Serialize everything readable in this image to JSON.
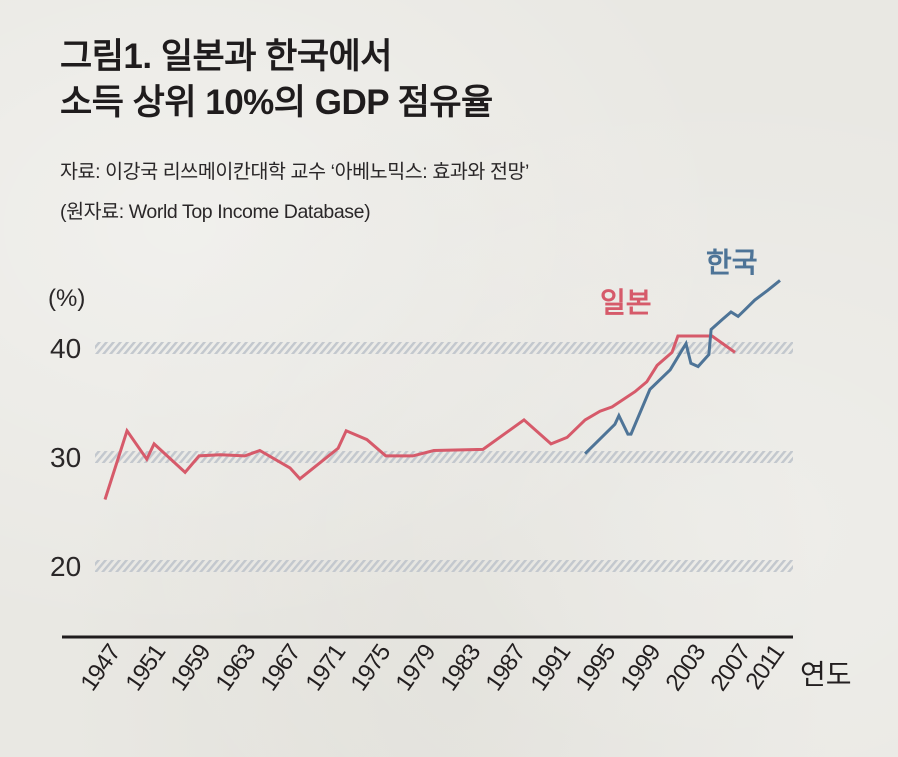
{
  "header": {
    "title_line1": "그림1. 일본과 한국에서",
    "title_line2": "소득 상위 10%의 GDP 점유율",
    "source_line1": "자료: 이강국 리쓰메이칸대학 교수 ‘아베노믹스: 효과와 전망’",
    "source_line2": "(원자료: World Top Income Database)"
  },
  "chart_data": {
    "type": "line",
    "title": "그림1. 일본과 한국에서 소득 상위 10%의 GDP 점유율",
    "xlabel": "연도",
    "ylabel": "(%)",
    "ylim": [
      16,
      48
    ],
    "yticks": [
      20,
      30,
      40
    ],
    "grid": true,
    "grid_style": "hatched horizontal bands at y ticks",
    "x_tick_labels": [
      "1947",
      "1951",
      "1959",
      "1963",
      "1967",
      "1971",
      "1975",
      "1979",
      "1983",
      "1987",
      "1991",
      "1995",
      "1999",
      "2003",
      "2007",
      "2011"
    ],
    "x_tick_positions": [
      0,
      1,
      2,
      3,
      4,
      5,
      6,
      7,
      8,
      9,
      10,
      11,
      12,
      13,
      14,
      14.75
    ],
    "x_note": "x positions are in tick-index units; tick labels are evenly spaced on the axis",
    "legend": "direct labels near series ends (top-right)",
    "series": [
      {
        "name": "일본",
        "color": "#d65a6a",
        "x": [
          0,
          0.49,
          0.93,
          1.09,
          1.78,
          2.09,
          2.56,
          3.11,
          3.44,
          4.11,
          4.33,
          5.18,
          5.36,
          5.82,
          6.24,
          6.84,
          7.31,
          8.4,
          9.31,
          9.91,
          10.27,
          10.67,
          11.0,
          11.27,
          11.78,
          12.04,
          12.27,
          12.6,
          12.73,
          13.49,
          14.0
        ],
        "values": [
          26.1,
          32.4,
          29.8,
          31.2,
          28.6,
          30.1,
          30.2,
          30.1,
          30.6,
          29.0,
          28.0,
          30.8,
          32.4,
          31.6,
          30.1,
          30.1,
          30.6,
          30.7,
          33.4,
          31.2,
          31.8,
          33.4,
          34.2,
          34.6,
          36.0,
          36.9,
          38.4,
          39.6,
          41.1,
          41.1,
          39.6
        ]
      },
      {
        "name": "한국",
        "color": "#4e7497",
        "x": [
          10.67,
          11.33,
          11.42,
          11.62,
          11.69,
          12.11,
          12.56,
          12.91,
          13.02,
          13.18,
          13.42,
          13.47,
          13.71,
          13.91,
          14.07,
          14.22,
          14.44,
          14.73,
          15.0
        ],
        "values": [
          30.3,
          33.0,
          33.8,
          32.1,
          32.1,
          36.2,
          38.0,
          40.4,
          38.6,
          38.3,
          39.4,
          41.7,
          42.6,
          43.3,
          42.9,
          43.5,
          44.4,
          45.3,
          46.2
        ]
      }
    ]
  }
}
